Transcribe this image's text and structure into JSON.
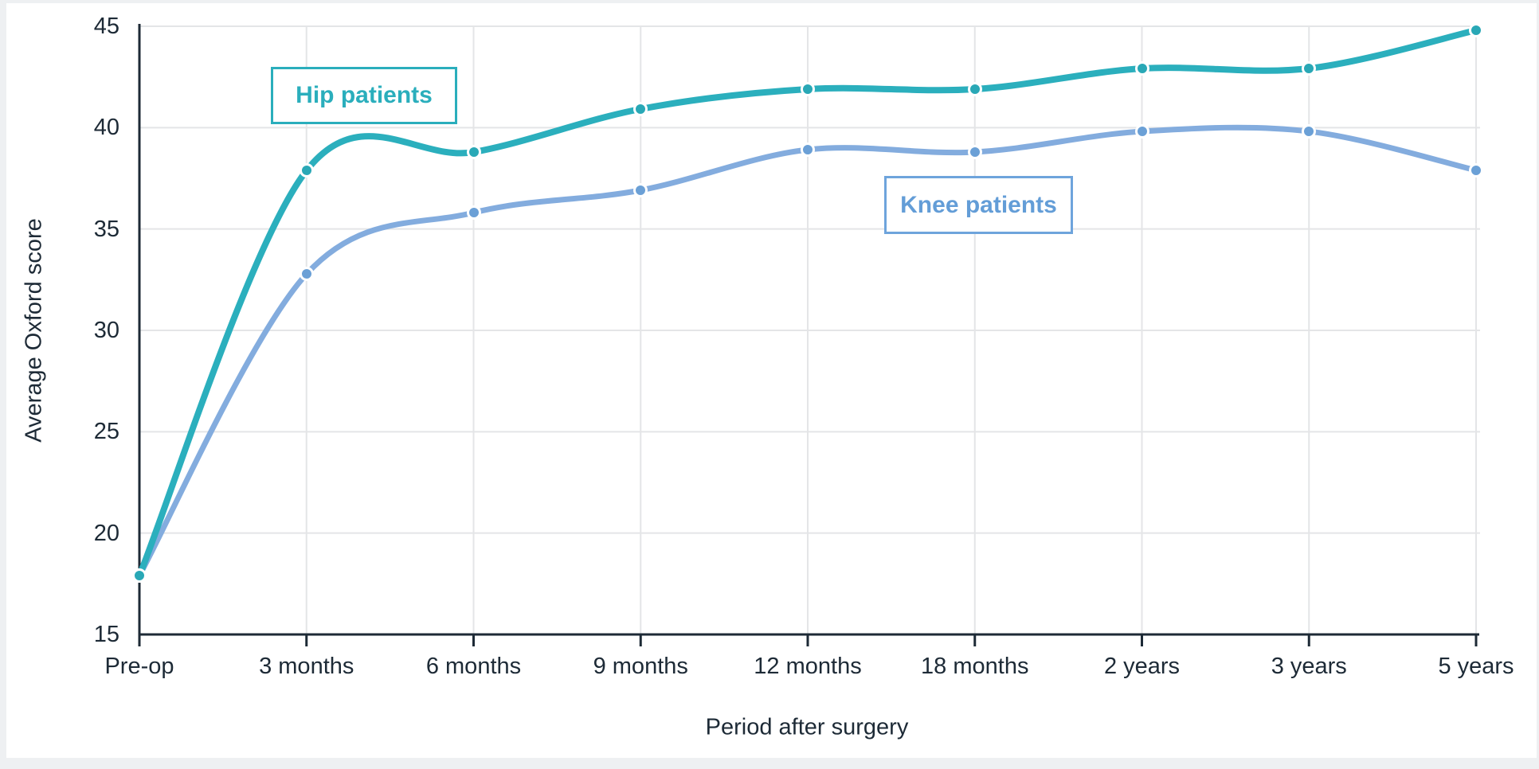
{
  "page": {
    "background_color": "#eef0f2",
    "card_color": "#ffffff"
  },
  "chart_data": {
    "type": "line",
    "xlabel": "Period after surgery",
    "ylabel": "Average Oxford score",
    "categories": [
      "Pre-op",
      "3 months",
      "6 months",
      "9 months",
      "12 months",
      "18 months",
      "2 years",
      "3 years",
      "5 years"
    ],
    "ylim": [
      15,
      45
    ],
    "yticks": [
      15,
      20,
      25,
      30,
      35,
      40,
      45
    ],
    "grid": true,
    "legend_position": "inline-annotation-boxes",
    "series": [
      {
        "name": "Knee patients",
        "line_color": "#83acde",
        "marker_color": "#6ba0d6",
        "values": [
          17.9,
          32.8,
          35.8,
          36.9,
          38.9,
          38.8,
          39.8,
          39.8,
          37.9
        ]
      },
      {
        "name": "Hip patients",
        "line_color": "#2bafbd",
        "marker_color": "#29a8b6",
        "values": [
          17.9,
          37.9,
          38.8,
          40.9,
          41.9,
          41.9,
          42.9,
          42.9,
          44.8
        ]
      }
    ],
    "annotations": [
      {
        "text": "Hip patients",
        "color": "#2aaebc"
      },
      {
        "text": "Knee patients",
        "color": "#639dd7",
        "border_color": "#6ea4dc"
      }
    ],
    "axis_color": "#1d2a36",
    "gridline_color": "#e4e5e7",
    "tick_label_color": "#1d2a36"
  }
}
